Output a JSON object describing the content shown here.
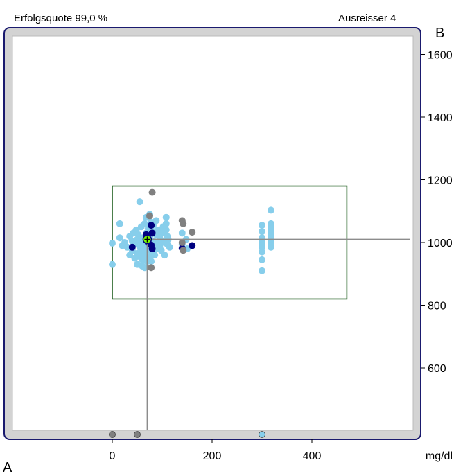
{
  "header": {
    "success_rate": "Erfolgsquote 99,0 %",
    "outliers": "Ausreisser 4"
  },
  "chart_data": {
    "type": "scatter",
    "axis_labels": {
      "y_axis": "B",
      "x_axis": "A"
    },
    "xlabel": "mg/dl",
    "ylabel": "",
    "xlim": [
      -200,
      600
    ],
    "ylim": [
      395,
      1660
    ],
    "x_ticks": [
      0,
      200,
      400
    ],
    "y_ticks": [
      600,
      800,
      1000,
      1200,
      1400,
      1600
    ],
    "grid": false,
    "target_box": {
      "x": [
        0,
        470
      ],
      "y": [
        820,
        1180
      ]
    },
    "mean": {
      "x": 70,
      "y": 1010
    },
    "colors": {
      "in_range": "#87ceeb",
      "highlight": "#000080",
      "outlier": "#808080",
      "box": "#1f5f1f",
      "mean_marker": "#7cfc00",
      "frame": "#1a1a6e",
      "panel": "#d3d3d3",
      "crosshair": "#8c8c8c"
    },
    "series": [
      {
        "role": "in_range",
        "points": [
          [
            0,
            930
          ],
          [
            0,
            998
          ],
          [
            15,
            1060
          ],
          [
            15,
            1015
          ],
          [
            20,
            990
          ],
          [
            25,
            1000
          ],
          [
            30,
            985
          ],
          [
            35,
            1020
          ],
          [
            35,
            960
          ],
          [
            40,
            1005
          ],
          [
            40,
            975
          ],
          [
            42,
            1030
          ],
          [
            45,
            950
          ],
          [
            45,
            995
          ],
          [
            48,
            1040
          ],
          [
            50,
            1010
          ],
          [
            50,
            965
          ],
          [
            50,
            930
          ],
          [
            52,
            1025
          ],
          [
            55,
            985
          ],
          [
            55,
            955
          ],
          [
            58,
            1050
          ],
          [
            58,
            1000
          ],
          [
            60,
            970
          ],
          [
            60,
            945
          ],
          [
            60,
            925
          ],
          [
            62,
            1015
          ],
          [
            65,
            1060
          ],
          [
            65,
            990
          ],
          [
            65,
            960
          ],
          [
            65,
            920
          ],
          [
            68,
            1030
          ],
          [
            68,
            1080
          ],
          [
            70,
            1000
          ],
          [
            70,
            975
          ],
          [
            70,
            940
          ],
          [
            72,
            1045
          ],
          [
            72,
            1010
          ],
          [
            75,
            985
          ],
          [
            75,
            955
          ],
          [
            75,
            1090
          ],
          [
            75,
            1020
          ],
          [
            78,
            1065
          ],
          [
            78,
            1000
          ],
          [
            78,
            940
          ],
          [
            80,
            1035
          ],
          [
            80,
            970
          ],
          [
            82,
            1055
          ],
          [
            82,
            1005
          ],
          [
            85,
            990
          ],
          [
            85,
            960
          ],
          [
            88,
            1025
          ],
          [
            88,
            1070
          ],
          [
            90,
            1000
          ],
          [
            90,
            980
          ],
          [
            92,
            1040
          ],
          [
            95,
            1015
          ],
          [
            95,
            990
          ],
          [
            98,
            975
          ],
          [
            100,
            1030
          ],
          [
            100,
            1005
          ],
          [
            102,
            1050
          ],
          [
            105,
            1000
          ],
          [
            105,
            960
          ],
          [
            108,
            1080
          ],
          [
            108,
            1060
          ],
          [
            108,
            1040
          ],
          [
            110,
            1020
          ],
          [
            110,
            995
          ],
          [
            112,
            1010
          ],
          [
            115,
            985
          ],
          [
            55,
            1130
          ],
          [
            140,
            1030
          ],
          [
            140,
            995
          ],
          [
            150,
            980
          ],
          [
            148,
            1010
          ],
          [
            300,
            910
          ],
          [
            300,
            945
          ],
          [
            300,
            970
          ],
          [
            300,
            985
          ],
          [
            300,
            1000
          ],
          [
            300,
            1015
          ],
          [
            300,
            1035
          ],
          [
            300,
            1055
          ],
          [
            318,
            985
          ],
          [
            318,
            1000
          ],
          [
            318,
            1010
          ],
          [
            318,
            1020
          ],
          [
            318,
            1030
          ],
          [
            318,
            1040
          ],
          [
            318,
            1050
          ],
          [
            318,
            1060
          ],
          [
            318,
            1103
          ]
        ]
      },
      {
        "role": "highlight",
        "points": [
          [
            40,
            985
          ],
          [
            68,
            1025
          ],
          [
            72,
            1000
          ],
          [
            78,
            1055
          ],
          [
            80,
            1030
          ],
          [
            78,
            992
          ],
          [
            80,
            980
          ],
          [
            140,
            982
          ],
          [
            160,
            990
          ]
        ]
      },
      {
        "role": "outlier",
        "points": [
          [
            80,
            1160
          ],
          [
            75,
            1085
          ],
          [
            78,
            920
          ],
          [
            140,
            1070
          ],
          [
            142,
            1060
          ],
          [
            142,
            975
          ],
          [
            160,
            1033
          ],
          [
            140,
            1000
          ]
        ]
      },
      {
        "role": "outlier_bottom",
        "points": [
          [
            0,
            "min"
          ],
          [
            50,
            "min"
          ],
          [
            300,
            "min"
          ]
        ],
        "fills": [
          "#808080",
          "#808080",
          "#87ceeb"
        ]
      }
    ]
  }
}
